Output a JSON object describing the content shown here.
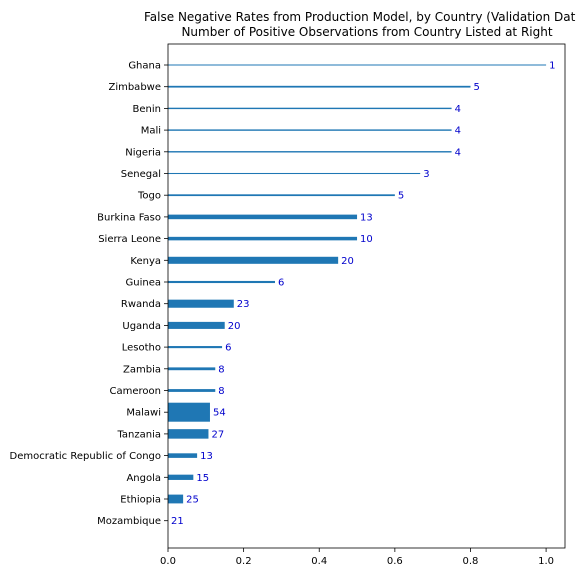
{
  "chart_data": {
    "type": "bar",
    "orientation": "horizontal",
    "title": "False Negative Rates from Production Model, by Country (Validation Dat",
    "subtitle": "Number of Positive Observations from Country Listed at Right",
    "xlabel": "",
    "ylabel": "",
    "xlim": [
      0,
      1.05
    ],
    "x_ticks": [
      0.0,
      0.2,
      0.4,
      0.6,
      0.8,
      1.0
    ],
    "x_tick_labels": [
      "0.0",
      "0.2",
      "0.4",
      "0.6",
      "0.8",
      "1.0"
    ],
    "grid": false,
    "legend": "none",
    "bar_color": "#1f77b4",
    "count_label_color": "#0000cc",
    "bar_thickness_encodes": "count",
    "categories": [
      "Ghana",
      "Zimbabwe",
      "Benin",
      "Mali",
      "Nigeria",
      "Senegal",
      "Togo",
      "Burkina Faso",
      "Sierra Leone",
      "Kenya",
      "Guinea",
      "Rwanda",
      "Uganda",
      "Lesotho",
      "Zambia",
      "Cameroon",
      "Malawi",
      "Tanzania",
      "Democratic Republic of Congo",
      "Angola",
      "Ethiopia",
      "Mozambique"
    ],
    "values": [
      1.0,
      0.8,
      0.75,
      0.75,
      0.75,
      0.667,
      0.6,
      0.5,
      0.5,
      0.45,
      0.283,
      0.174,
      0.15,
      0.143,
      0.125,
      0.125,
      0.111,
      0.107,
      0.077,
      0.067,
      0.04,
      0.0
    ],
    "counts": [
      "1",
      "5",
      "4",
      "4",
      "4",
      "3",
      "5",
      "13",
      "10",
      "20",
      "6",
      "23",
      "20",
      "6",
      "8",
      "8",
      "54",
      "27",
      "13",
      "15",
      "25",
      "21"
    ]
  }
}
